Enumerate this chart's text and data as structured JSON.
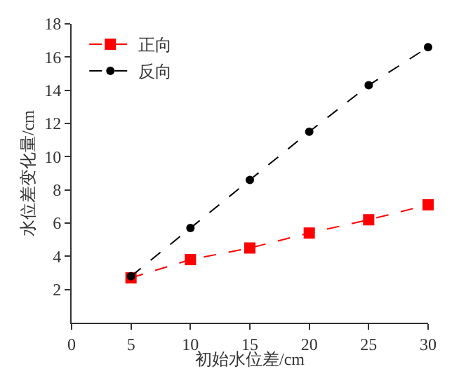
{
  "chart_data": {
    "type": "line",
    "xlabel": "初始水位差/cm",
    "ylabel": "水位差变化量/cm",
    "x": [
      5,
      10,
      15,
      20,
      25,
      30
    ],
    "series": [
      {
        "name": "正向",
        "color": "#ff0000",
        "marker": "square",
        "values": [
          2.7,
          3.8,
          4.5,
          5.4,
          6.2,
          7.1
        ]
      },
      {
        "name": "反向",
        "color": "#000000",
        "marker": "circle",
        "values": [
          2.8,
          5.7,
          8.6,
          11.5,
          14.3,
          16.6
        ]
      }
    ],
    "xlim": [
      0,
      30
    ],
    "xticks": [
      0,
      5,
      10,
      15,
      20,
      25,
      30
    ],
    "ylim": [
      0,
      18
    ],
    "yticks": [
      2,
      4,
      6,
      8,
      10,
      12,
      14,
      16,
      18
    ],
    "line_style": "dashed",
    "legend": "top left",
    "grid": false
  }
}
